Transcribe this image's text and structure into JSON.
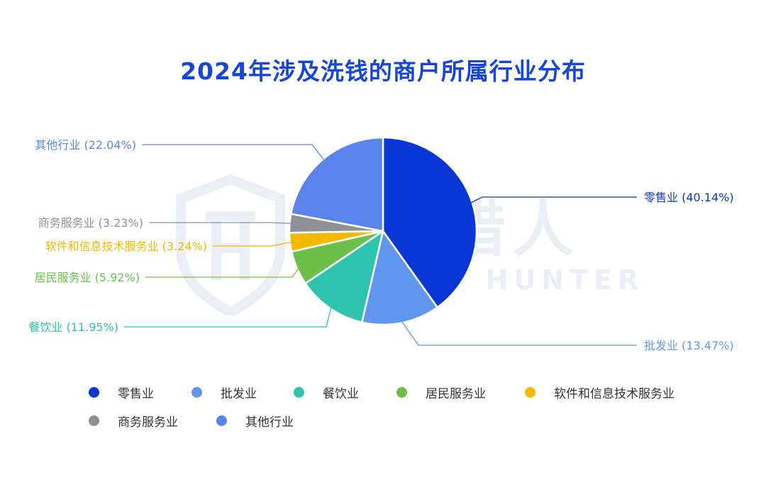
{
  "chart_data": {
    "type": "pie",
    "title": "2024年涉及洗钱的商户所属行业分布",
    "slices": [
      {
        "name": "零售业",
        "value": 40.14,
        "label": "零售业 (40.14%)",
        "color": "#0a36d6"
      },
      {
        "name": "批发业",
        "value": 13.47,
        "label": "批发业 (13.47%)",
        "color": "#6196ee"
      },
      {
        "name": "餐饮业",
        "value": 11.95,
        "label": "餐饮业 (11.95%)",
        "color": "#2ec3ae"
      },
      {
        "name": "居民服务业",
        "value": 5.92,
        "label": "居民服务业 (5.92%)",
        "color": "#6cc04a"
      },
      {
        "name": "软件和信息技术服务业",
        "value": 3.24,
        "label": "软件和信息技术服务业 (3.24%)",
        "color": "#f3b800"
      },
      {
        "name": "商务服务业",
        "value": 3.23,
        "label": "商务服务业 (3.23%)",
        "color": "#8d9196"
      },
      {
        "name": "其他行业",
        "value": 22.04,
        "label": "其他行业 (22.04%)",
        "color": "#5a84ec"
      }
    ],
    "legend": [
      "零售业",
      "批发业",
      "餐饮业",
      "居民服务业",
      "软件和信息技术服务业",
      "商务服务业",
      "其他行业"
    ],
    "legend_position": "bottom"
  },
  "watermark": {
    "cn": "威胁猎人",
    "en": "THREAT HUNTER"
  }
}
